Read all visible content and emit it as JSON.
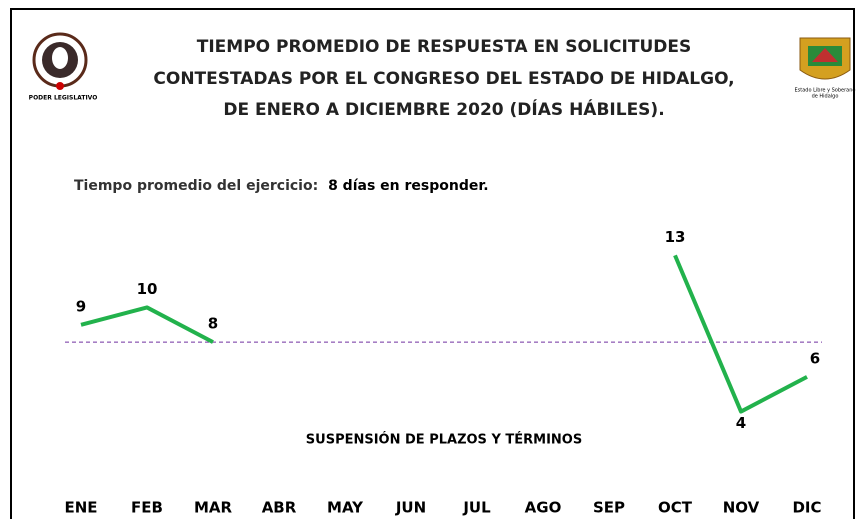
{
  "chart_data": {
    "type": "line",
    "title": [
      "TIEMPO PROMEDIO DE RESPUESTA EN SOLICITUDES",
      "CONTESTADAS POR EL CONGRESO DEL ESTADO DE HIDALGO,",
      "DE ENERO A DICIEMBRE 2020 (DÍAS HÁBILES)."
    ],
    "left_logo_caption": "PODER LEGISLATIVO",
    "right_logo_caption": [
      "Estado Libre y Soberano",
      "de Hidalgo"
    ],
    "subtitle": "Tiempo promedio del ejercicio:",
    "average": {
      "value": 8,
      "label": "8 días en responder.",
      "color": "#7030a0"
    },
    "annotation": "SUSPENSIÓN DE PLAZOS Y TÉRMINOS",
    "categories": [
      "ENE",
      "FEB",
      "MAR",
      "ABR",
      "MAY",
      "JUN",
      "JUL",
      "AGO",
      "SEP",
      "OCT",
      "NOV",
      "DIC"
    ],
    "series": [
      {
        "name": "Tiempo promedio",
        "color": "#22b24c",
        "values": [
          9,
          10,
          8,
          null,
          null,
          null,
          null,
          null,
          null,
          13,
          4,
          6
        ]
      }
    ],
    "ylim": [
      0,
      14
    ]
  }
}
